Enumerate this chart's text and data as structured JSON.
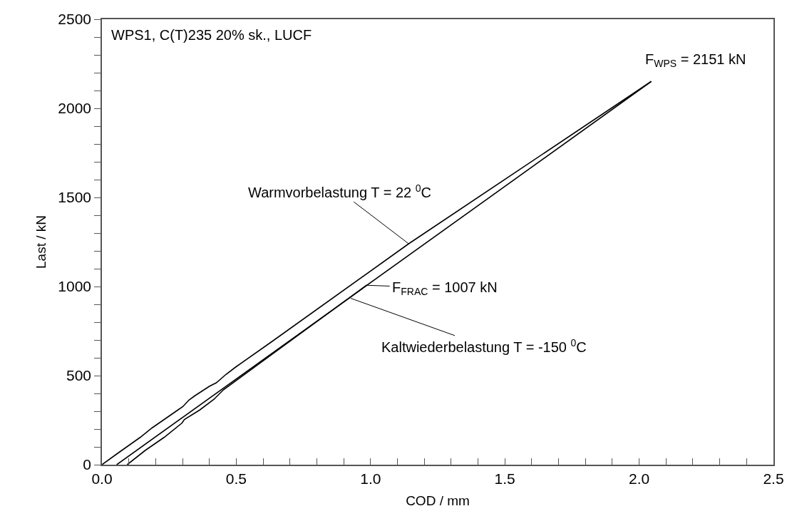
{
  "chart_data": {
    "type": "line",
    "xlabel": "COD / mm",
    "ylabel": "Last / kN",
    "xlim": [
      0,
      2.5
    ],
    "ylim": [
      0,
      2500
    ],
    "xticks": [
      {
        "value": 0,
        "label": "0.0"
      },
      {
        "value": 0.1,
        "label": null
      },
      {
        "value": 0.2,
        "label": null
      },
      {
        "value": 0.3,
        "label": null
      },
      {
        "value": 0.4,
        "label": null
      },
      {
        "value": 0.5,
        "label": "0.5"
      },
      {
        "value": 0.6,
        "label": null
      },
      {
        "value": 0.7,
        "label": null
      },
      {
        "value": 0.8,
        "label": null
      },
      {
        "value": 0.9,
        "label": null
      },
      {
        "value": 1,
        "label": "1.0"
      },
      {
        "value": 1.1,
        "label": null
      },
      {
        "value": 1.2,
        "label": null
      },
      {
        "value": 1.3,
        "label": null
      },
      {
        "value": 1.4,
        "label": null
      },
      {
        "value": 1.5,
        "label": "1.5"
      },
      {
        "value": 1.6,
        "label": null
      },
      {
        "value": 1.7,
        "label": null
      },
      {
        "value": 1.8,
        "label": null
      },
      {
        "value": 1.9,
        "label": null
      },
      {
        "value": 2,
        "label": "2.0"
      },
      {
        "value": 2.1,
        "label": null
      },
      {
        "value": 2.2,
        "label": null
      },
      {
        "value": 2.3,
        "label": null
      },
      {
        "value": 2.4,
        "label": null
      },
      {
        "value": 2.5,
        "label": "2.5"
      }
    ],
    "yticks": [
      0,
      {
        "value": 100,
        "label": null
      },
      {
        "value": 200,
        "label": null
      },
      {
        "value": 300,
        "label": null
      },
      {
        "value": 400,
        "label": null
      },
      500,
      {
        "value": 600,
        "label": null
      },
      {
        "value": 700,
        "label": null
      },
      {
        "value": 800,
        "label": null
      },
      {
        "value": 900,
        "label": null
      },
      1000,
      {
        "value": 1100,
        "label": null
      },
      {
        "value": 1200,
        "label": null
      },
      {
        "value": 1300,
        "label": null
      },
      {
        "value": 1400,
        "label": null
      },
      1500,
      {
        "value": 1600,
        "label": null
      },
      {
        "value": 1700,
        "label": null
      },
      {
        "value": 1800,
        "label": null
      },
      {
        "value": 1900,
        "label": null
      },
      2000,
      {
        "value": 2100,
        "label": null
      },
      {
        "value": 2200,
        "label": null
      },
      {
        "value": 2300,
        "label": null
      },
      {
        "value": 2400,
        "label": null
      },
      2500
    ],
    "grid": false,
    "marker": "none",
    "line_style": "solid",
    "series": [
      {
        "color": "#000000",
        "x": [
          0,
          0.055,
          0.099,
          0.143,
          0.187,
          0.232,
          0.276,
          0.302,
          0.324,
          0.346,
          0.4,
          0.426,
          0.462,
          0.497,
          0.629,
          1.142,
          2.045
        ],
        "values": [
          0,
          60,
          107,
          154,
          207,
          254,
          300,
          327,
          363,
          387,
          440,
          460,
          507,
          547,
          687,
          1240,
          2151
        ]
      },
      {
        "color": "#000000",
        "x": [
          2.045,
          0.055
        ],
        "values": [
          2151,
          0
        ]
      },
      {
        "color": "#000000",
        "x": [
          0.094,
          0.161,
          0.232,
          0.298,
          0.307,
          0.364,
          0.417,
          0.452,
          0.985
        ],
        "values": [
          0,
          80,
          154,
          234,
          254,
          307,
          367,
          420,
          1007
        ]
      }
    ],
    "annotations": [
      "WPS1, C(T)235 20% sk., LUCF",
      {
        "text": "Warmvorbelastung T = 22 $^{0}$C",
        "x": 1.142,
        "y": 1240
      },
      {
        "text": "F$_{FRAC}$ = 1007 kN",
        "x": 0.985,
        "y": 1007
      },
      {
        "text": "Kaltwiederbelastung T = -150 $^{0}$C",
        "x": 0.926,
        "y": 934
      },
      {
        "text": "F$_{WPS}$ = 2151 kN",
        "x": 2.045,
        "y": 2151
      }
    ]
  }
}
